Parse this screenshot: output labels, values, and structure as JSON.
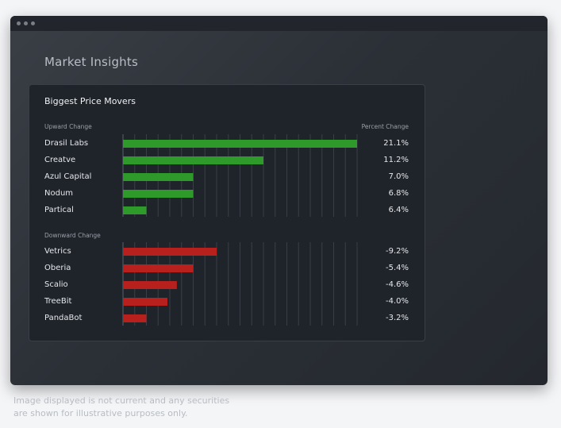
{
  "page_title": "Market Insights",
  "panel_title": "Biggest Price Movers",
  "upward": {
    "label": "Upward Change",
    "value_header": "Percent Change",
    "color": "#2d9a2a",
    "rows": [
      {
        "name": "Drasil Labs",
        "value": "21.1%",
        "bar_fraction": 1.0
      },
      {
        "name": "Creatve",
        "value": "11.2%",
        "bar_fraction": 0.6
      },
      {
        "name": "Azul Capital",
        "value": "7.0%",
        "bar_fraction": 0.3
      },
      {
        "name": "Nodum",
        "value": "6.8%",
        "bar_fraction": 0.3
      },
      {
        "name": "Partical",
        "value": "6.4%",
        "bar_fraction": 0.1
      }
    ]
  },
  "downward": {
    "label": "Downward Change",
    "color": "#b8201d",
    "rows": [
      {
        "name": "Vetrics",
        "value": "-9.2%",
        "bar_fraction": 0.4
      },
      {
        "name": "Oberia",
        "value": "-5.4%",
        "bar_fraction": 0.3
      },
      {
        "name": "Scalio",
        "value": "-4.6%",
        "bar_fraction": 0.23
      },
      {
        "name": "TreeBit",
        "value": "-4.0%",
        "bar_fraction": 0.19
      },
      {
        "name": "PandaBot",
        "value": "-3.2%",
        "bar_fraction": 0.1
      }
    ]
  },
  "disclaimer_line1": "Image displayed is not current and any securities",
  "disclaimer_line2": "are shown for illustrative purposes only."
}
